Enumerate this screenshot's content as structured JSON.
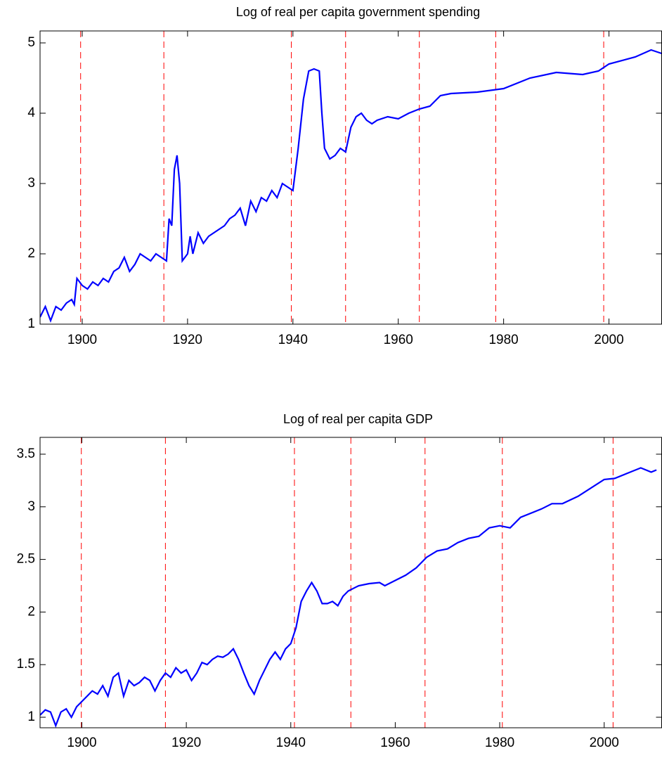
{
  "chart_data": [
    {
      "type": "line",
      "title": "Log of real per capita government spending",
      "xlim": [
        1892,
        2010
      ],
      "ylim": [
        1,
        5.17
      ],
      "xticks": [
        1900,
        1920,
        1940,
        1960,
        1980,
        2000
      ],
      "yticks": [
        1,
        2,
        3,
        4,
        5
      ],
      "vlines": [
        1899.7,
        1915.5,
        1939.7,
        1950,
        1964,
        1978.5,
        1999
      ],
      "vline_color": "#ff0000",
      "series": [
        {
          "color": "#0000ff",
          "x": [
            1892,
            1893,
            1894,
            1895,
            1896,
            1897,
            1898,
            1898.5,
            1899,
            1900,
            1901,
            1902,
            1903,
            1904,
            1905,
            1906,
            1907,
            1908,
            1909,
            1910,
            1911,
            1912,
            1913,
            1914,
            1915,
            1916,
            1916.5,
            1917,
            1917.5,
            1918,
            1918.5,
            1919,
            1920,
            1920.5,
            1921,
            1922,
            1923,
            1924,
            1925,
            1926,
            1927,
            1928,
            1929,
            1930,
            1931,
            1932,
            1933,
            1934,
            1935,
            1936,
            1937,
            1938,
            1939,
            1940,
            1941,
            1942,
            1943,
            1944,
            1945,
            1945.5,
            1946,
            1947,
            1948,
            1949,
            1950,
            1951,
            1952,
            1953,
            1954,
            1955,
            1956,
            1958,
            1960,
            1962,
            1964,
            1966,
            1968,
            1970,
            1975,
            1980,
            1985,
            1990,
            1995,
            1998,
            2000,
            2005,
            2008,
            2010
          ],
          "values": [
            1.1,
            1.25,
            1.05,
            1.25,
            1.2,
            1.3,
            1.35,
            1.28,
            1.65,
            1.55,
            1.5,
            1.6,
            1.55,
            1.65,
            1.6,
            1.75,
            1.8,
            1.95,
            1.75,
            1.85,
            2.0,
            1.95,
            1.9,
            2.0,
            1.95,
            1.9,
            2.5,
            2.4,
            3.2,
            3.4,
            3.0,
            1.9,
            2.0,
            2.25,
            2.0,
            2.3,
            2.15,
            2.25,
            2.3,
            2.35,
            2.4,
            2.5,
            2.55,
            2.65,
            2.4,
            2.75,
            2.6,
            2.8,
            2.75,
            2.9,
            2.8,
            3.0,
            2.95,
            2.9,
            3.5,
            4.2,
            4.6,
            4.63,
            4.6,
            4.0,
            3.5,
            3.35,
            3.4,
            3.5,
            3.45,
            3.8,
            3.95,
            4.0,
            3.9,
            3.85,
            3.9,
            3.95,
            3.92,
            4.0,
            4.06,
            4.1,
            4.25,
            4.28,
            4.3,
            4.35,
            4.5,
            4.58,
            4.55,
            4.6,
            4.7,
            4.8,
            4.9,
            4.85
          ]
        }
      ]
    },
    {
      "type": "line",
      "title": "Log of real per capita GDP",
      "xlim": [
        1892,
        2011
      ],
      "ylim": [
        0.9,
        3.66
      ],
      "xticks": [
        1900,
        1920,
        1940,
        1960,
        1980,
        2000
      ],
      "yticks": [
        1,
        1.5,
        2,
        2.5,
        3,
        3.5
      ],
      "vlines": [
        1899.9,
        1916,
        1940.7,
        1951.5,
        1965.7,
        1980.5,
        2001.7
      ],
      "vline_color": "#ff0000",
      "series": [
        {
          "color": "#0000ff",
          "x": [
            1892,
            1893,
            1894,
            1895,
            1896,
            1897,
            1898,
            1899,
            1900,
            1902,
            1903,
            1904,
            1905,
            1906,
            1907,
            1908,
            1909,
            1910,
            1911,
            1912,
            1913,
            1914,
            1915,
            1916,
            1917,
            1918,
            1919,
            1920,
            1921,
            1922,
            1923,
            1924,
            1925,
            1926,
            1927,
            1928,
            1929,
            1930,
            1931,
            1932,
            1933,
            1934,
            1935,
            1936,
            1937,
            1938,
            1939,
            1940,
            1941,
            1942,
            1943,
            1944,
            1945,
            1946,
            1947,
            1948,
            1949,
            1950,
            1951,
            1953,
            1955,
            1957,
            1958,
            1960,
            1962,
            1964,
            1966,
            1968,
            1970,
            1972,
            1974,
            1976,
            1978,
            1980,
            1982,
            1984,
            1988,
            1990,
            1992,
            1995,
            2000,
            2002,
            2005,
            2007,
            2009,
            2010
          ],
          "values": [
            1.02,
            1.07,
            1.05,
            0.92,
            1.05,
            1.08,
            1.0,
            1.1,
            1.15,
            1.25,
            1.22,
            1.3,
            1.2,
            1.38,
            1.42,
            1.2,
            1.35,
            1.3,
            1.33,
            1.38,
            1.35,
            1.25,
            1.35,
            1.42,
            1.38,
            1.47,
            1.42,
            1.45,
            1.35,
            1.42,
            1.52,
            1.5,
            1.55,
            1.58,
            1.57,
            1.6,
            1.65,
            1.55,
            1.42,
            1.3,
            1.22,
            1.35,
            1.45,
            1.55,
            1.62,
            1.55,
            1.65,
            1.7,
            1.85,
            2.1,
            2.2,
            2.28,
            2.2,
            2.08,
            2.08,
            2.1,
            2.06,
            2.15,
            2.2,
            2.25,
            2.27,
            2.28,
            2.25,
            2.3,
            2.35,
            2.42,
            2.52,
            2.58,
            2.6,
            2.66,
            2.7,
            2.72,
            2.8,
            2.82,
            2.8,
            2.9,
            2.98,
            3.03,
            3.03,
            3.1,
            3.26,
            3.27,
            3.33,
            3.37,
            3.33,
            3.35
          ]
        }
      ]
    }
  ]
}
